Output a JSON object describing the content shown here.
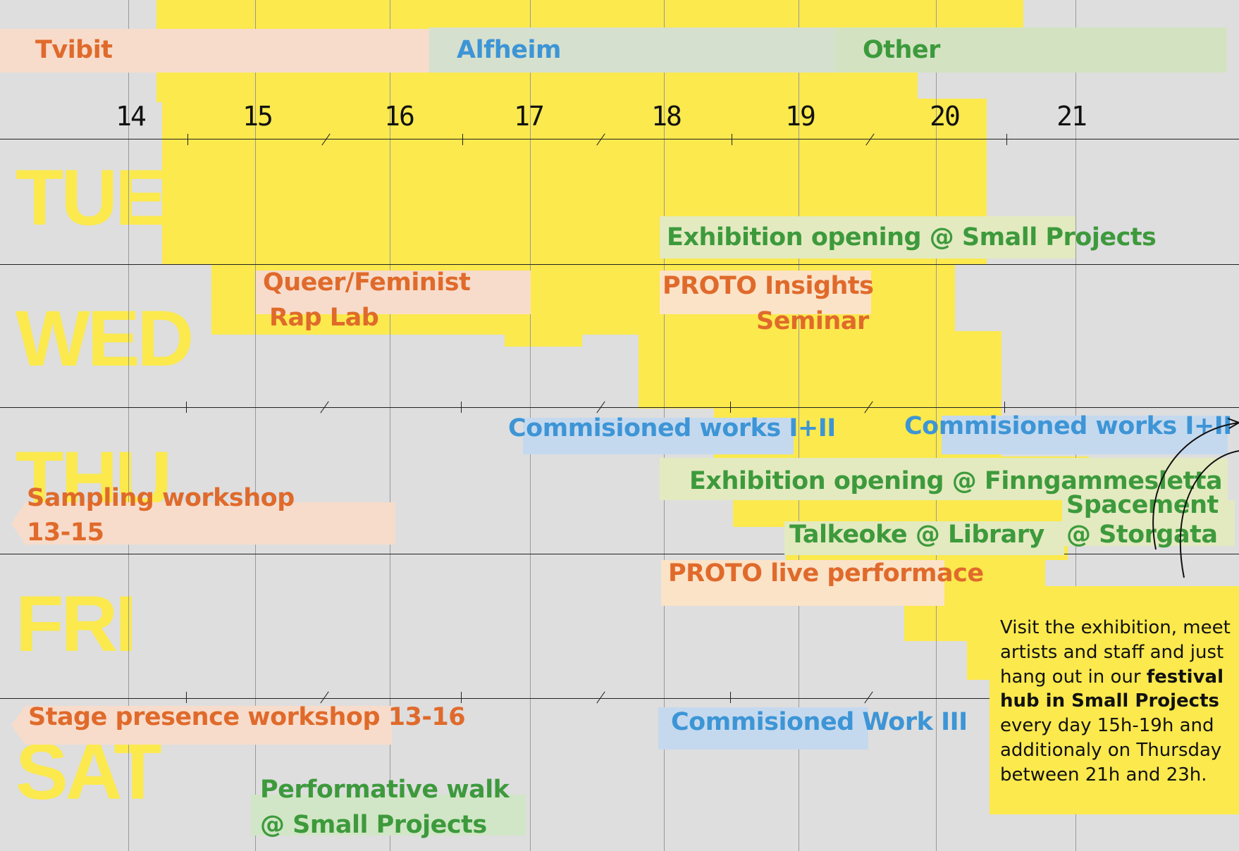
{
  "legend": {
    "venues": [
      {
        "label": "Tvibit",
        "color": "#e06a2b"
      },
      {
        "label": "Alfheim",
        "color": "#3d95d6"
      },
      {
        "label": "Other",
        "color": "#3d9a3c"
      }
    ]
  },
  "timeline": {
    "hours": [
      "14",
      "15",
      "16",
      "17",
      "18",
      "19",
      "20",
      "21"
    ]
  },
  "days": [
    "TUE",
    "WED",
    "THU",
    "FRI",
    "SAT"
  ],
  "events": {
    "tue_exhibition": "Exhibition opening @ Small Projects",
    "wed_rap_1": "Queer/Feminist",
    "wed_rap_2": "Rap Lab",
    "wed_proto_1": "PROTO Insights",
    "wed_proto_2": "Seminar",
    "thu_commissioned_a": "Commisioned works I+II",
    "thu_commissioned_b": "Commisioned works I+II",
    "thu_exhibition": "Exhibition opening @ Finngammesletta",
    "thu_spacement_1": "Spacement",
    "thu_spacement_2": "@ Storgata",
    "thu_talkeoke": "Talkeoke @ Library",
    "thu_sampling_1": "Sampling workshop",
    "thu_sampling_2": "13-15",
    "fri_proto_live": "PROTO live performace",
    "sat_stage": "Stage presence workshop 13-16",
    "sat_commissioned": "Commisioned Work III",
    "sat_walk_1": "Performative walk",
    "sat_walk_2": "@ Small Projects"
  },
  "info": {
    "text_1": "Visit the exhibition, meet artists and staff and just hang out in our ",
    "text_bold": "festival hub in Small Projects",
    "text_2": " every day 15h-19h and additionaly on Thursday between 21h and 23h."
  },
  "colors": {
    "background": "#dedede",
    "highlight_yellow": "#fbe94d",
    "tvibit_orange": "#e06a2b",
    "alfheim_blue": "#3d95d6",
    "other_green": "#3d9a3c"
  }
}
